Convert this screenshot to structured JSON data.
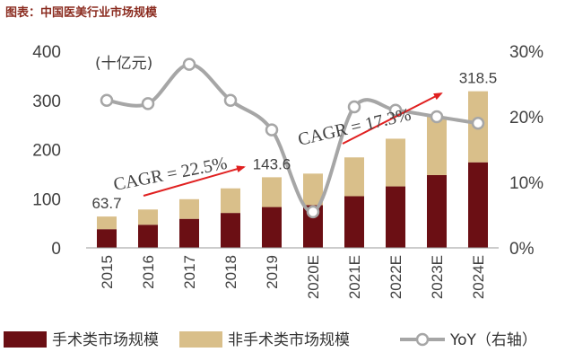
{
  "figure_title": "图表：中国医美行业市场规模",
  "chart_data": {
    "type": "bar",
    "stacked": true,
    "categories": [
      "2015",
      "2016",
      "2017",
      "2018",
      "2019",
      "2020E",
      "2021E",
      "2022E",
      "2023E",
      "2024E"
    ],
    "unit_label": "(十亿元)",
    "series": [
      {
        "name": "手术类市场规模",
        "color": "#6b0f14",
        "axis": "left",
        "values": [
          38,
          47,
          59,
          71,
          83,
          87,
          105,
          125,
          148,
          174
        ]
      },
      {
        "name": "非手术类市场规模",
        "color": "#d9bf8a",
        "axis": "left",
        "values": [
          25.7,
          31,
          40,
          50,
          60.6,
          64,
          79,
          97,
          119,
          144.5
        ]
      },
      {
        "name": "YoY（右轴）",
        "type": "line",
        "axis": "right",
        "color": "#a6a6a6",
        "values": [
          22.5,
          22.0,
          28.0,
          22.5,
          18.0,
          5.5,
          21.5,
          21.0,
          20.0,
          19.0
        ]
      }
    ],
    "y_left": {
      "ticks": [
        0,
        100,
        200,
        300,
        400
      ],
      "ylim": [
        0,
        400
      ]
    },
    "y_right": {
      "ticks": [
        "0%",
        "10%",
        "20%",
        "30%"
      ],
      "ylim": [
        0,
        30
      ]
    },
    "data_labels": [
      {
        "category": "2015",
        "text": "63.7"
      },
      {
        "category": "2019",
        "text": "143.6"
      },
      {
        "category": "2024E",
        "text": "318.5"
      }
    ],
    "annotations": [
      {
        "text": "CAGR = 22.5%"
      },
      {
        "text": "CAGR = 17.3%"
      }
    ],
    "legend_placement": "bottom"
  }
}
